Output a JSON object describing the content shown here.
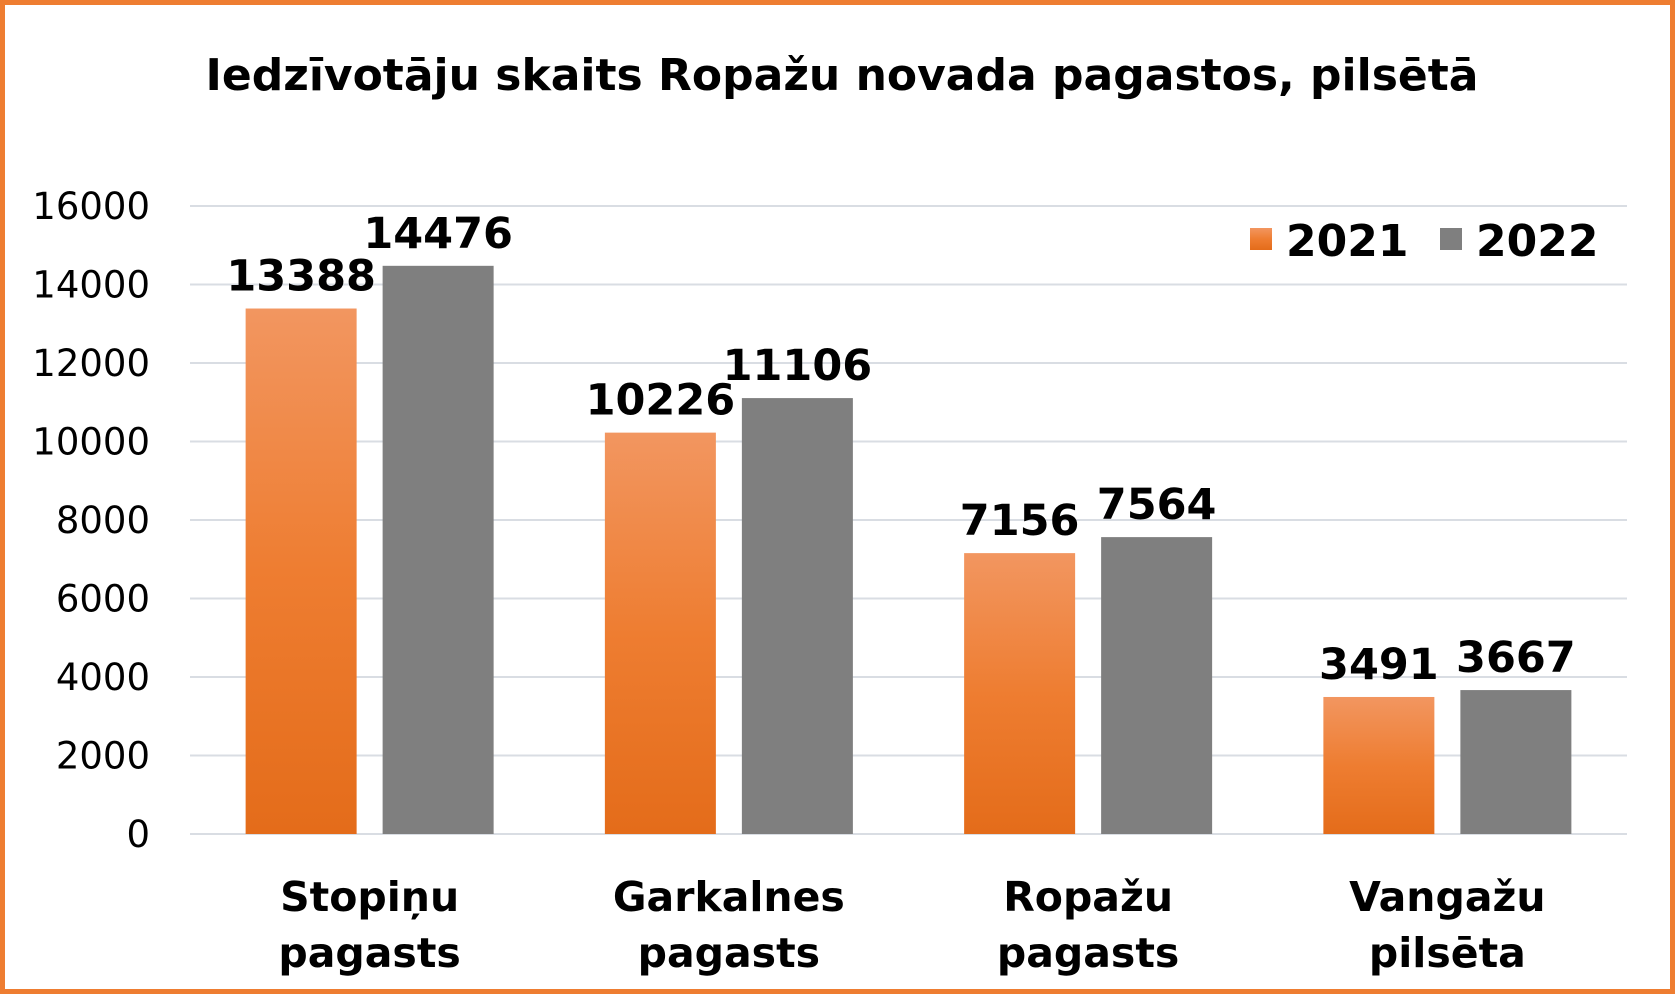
{
  "chart_data": {
    "type": "bar",
    "title": "Iedzīvotāju skaits Ropažu novada pagastos, pilsētā",
    "categories": [
      [
        "Stopiņu",
        "pagasts"
      ],
      [
        "Garkalnes",
        "pagasts"
      ],
      [
        "Ropažu",
        "pagasts"
      ],
      [
        "Vangažu",
        "pilsēta"
      ]
    ],
    "series": [
      {
        "name": "2021",
        "values": [
          13388,
          10226,
          7156,
          3491
        ],
        "color": "#ee7d31",
        "color_light": "#f29660",
        "color_dark": "#e46c1a"
      },
      {
        "name": "2022",
        "values": [
          14476,
          11106,
          7564,
          3667
        ],
        "color": "#7f7f7f"
      }
    ],
    "ylim": [
      0,
      16000
    ],
    "yticks": [
      0,
      2000,
      4000,
      6000,
      8000,
      10000,
      12000,
      14000,
      16000
    ],
    "grid": true,
    "gridColor": "#d9dde3",
    "legend": "top-right",
    "data_labels": true
  }
}
